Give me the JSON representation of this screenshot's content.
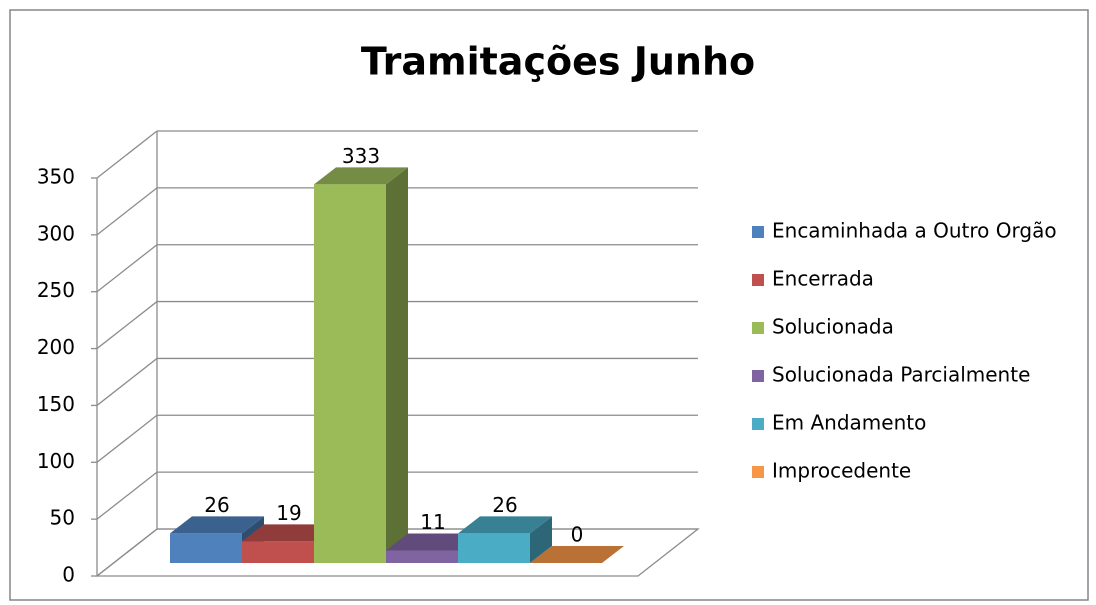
{
  "chart_data": {
    "type": "bar",
    "title": "Tramitações Junho",
    "series": [
      {
        "name": "Encaminhada a Outro Orgão",
        "color": "#4f81bd",
        "values": [
          26
        ]
      },
      {
        "name": "Encerrada",
        "color": "#c0504d",
        "values": [
          19
        ]
      },
      {
        "name": "Solucionada",
        "color": "#9bbb59",
        "values": [
          333
        ]
      },
      {
        "name": "Solucionada Parcialmente",
        "color": "#8064a2",
        "values": [
          11
        ]
      },
      {
        "name": "Em Andamento",
        "color": "#4bacc6",
        "values": [
          26
        ]
      },
      {
        "name": "Improcedente",
        "color": "#f79646",
        "values": [
          0
        ]
      }
    ],
    "ylim": [
      0,
      350
    ],
    "yticks": [
      0,
      50,
      100,
      150,
      200,
      250,
      300,
      350
    ],
    "grid": true,
    "legend": "right"
  }
}
